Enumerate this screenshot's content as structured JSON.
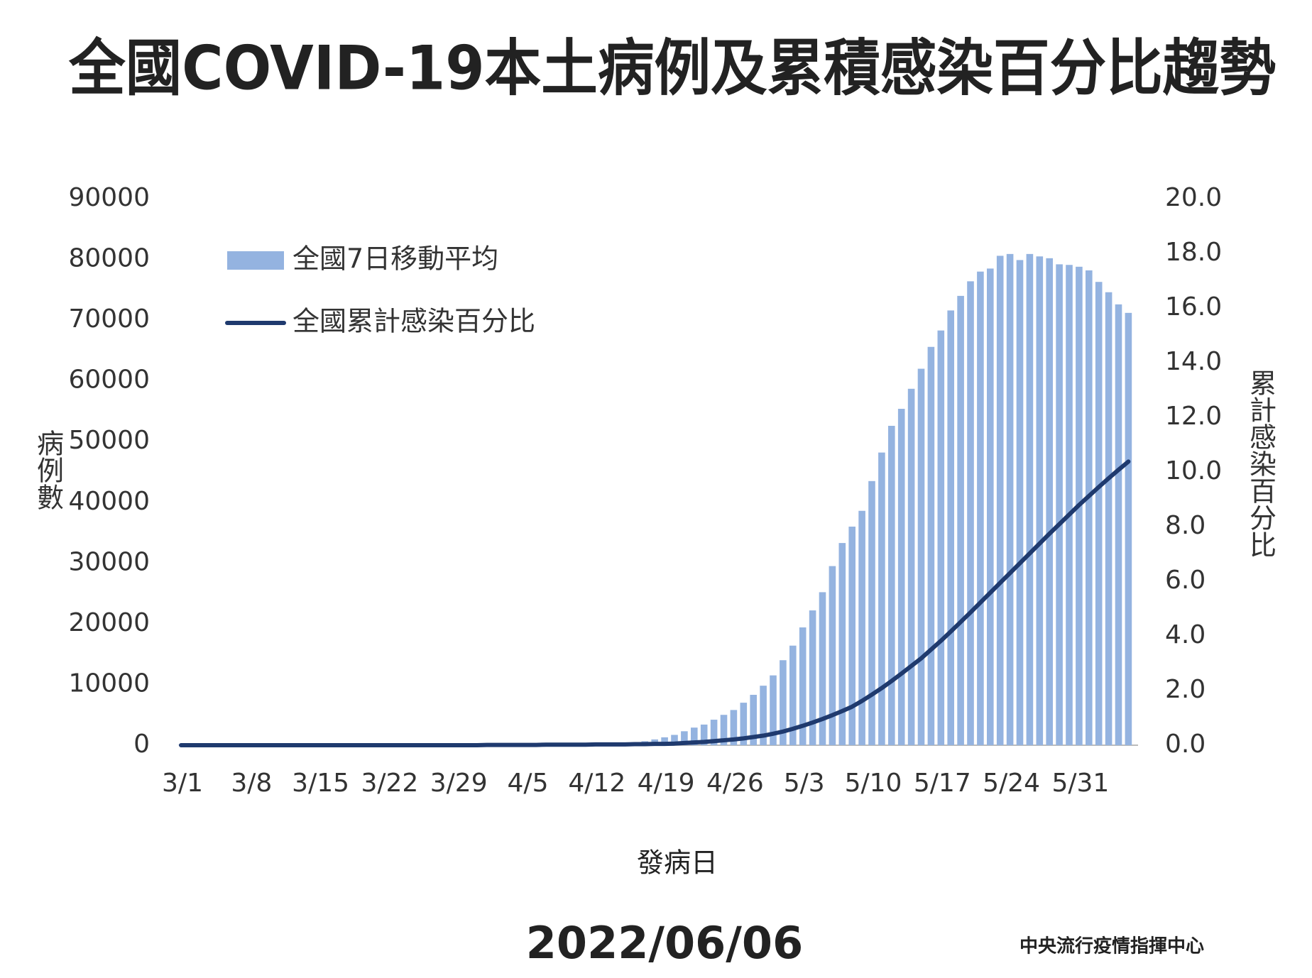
{
  "chart_data": {
    "type": "combo",
    "title": "全國COVID-19本土病例及累積感染百分比趨勢",
    "x_label": "發病日",
    "y_label": "病例數",
    "y2_label": "累計感染百分比",
    "date": "2022/06/06",
    "source": "中央流行疫情指揮中心",
    "categories": [
      "3/1",
      null,
      null,
      null,
      null,
      null,
      null,
      "3/8",
      null,
      null,
      null,
      null,
      null,
      null,
      "3/15",
      null,
      null,
      null,
      null,
      null,
      null,
      "3/22",
      null,
      null,
      null,
      null,
      null,
      null,
      "3/29",
      null,
      null,
      null,
      null,
      null,
      null,
      "4/5",
      null,
      null,
      null,
      null,
      null,
      null,
      "4/12",
      null,
      null,
      null,
      null,
      null,
      null,
      "4/19",
      null,
      null,
      null,
      null,
      null,
      null,
      "4/26",
      null,
      null,
      null,
      null,
      null,
      null,
      "5/3",
      null,
      null,
      null,
      null,
      null,
      null,
      "5/10",
      null,
      null,
      null,
      null,
      null,
      null,
      "5/17",
      null,
      null,
      null,
      null,
      null,
      null,
      "5/24",
      null,
      null,
      null,
      null,
      null,
      null,
      "5/31",
      null,
      null,
      null,
      null,
      null
    ],
    "series": [
      {
        "name": "全國7日移動平均",
        "type": "bar",
        "color": "#94b3e0",
        "values": [
          30,
          35,
          40,
          35,
          30,
          45,
          50,
          40,
          35,
          45,
          50,
          55,
          50,
          45,
          55,
          60,
          65,
          60,
          55,
          60,
          70,
          75,
          70,
          65,
          70,
          80,
          85,
          90,
          85,
          90,
          100,
          100,
          105,
          110,
          115,
          120,
          130,
          140,
          150,
          160,
          170,
          180,
          200,
          230,
          280,
          350,
          450,
          650,
          950,
          1300,
          1700,
          2300,
          2900,
          3400,
          4200,
          5000,
          5800,
          7000,
          8300,
          9800,
          11500,
          14000,
          16400,
          19400,
          22200,
          25200,
          29500,
          33300,
          36000,
          38600,
          43500,
          48200,
          52600,
          55400,
          58700,
          62000,
          65600,
          68300,
          71600,
          74000,
          76400,
          78000,
          78500,
          80600,
          80900,
          79900,
          80900,
          80500,
          80200,
          79200,
          79100,
          78800,
          78200,
          76300,
          74600,
          72600,
          71200
        ]
      },
      {
        "name": "全國累計感染百分比",
        "type": "line",
        "color": "#1f3a6e",
        "axis": "y2",
        "values": [
          0,
          0,
          0,
          0,
          0,
          0,
          0,
          0,
          0,
          0,
          0,
          0,
          0,
          0,
          0,
          0,
          0,
          0,
          0,
          0,
          0,
          0,
          0,
          0,
          0,
          0,
          0,
          0,
          0,
          0,
          0,
          0.01,
          0.01,
          0.01,
          0.01,
          0.01,
          0.01,
          0.02,
          0.02,
          0.02,
          0.02,
          0.02,
          0.03,
          0.03,
          0.03,
          0.03,
          0.04,
          0.04,
          0.05,
          0.05,
          0.06,
          0.08,
          0.1,
          0.12,
          0.15,
          0.18,
          0.21,
          0.25,
          0.3,
          0.35,
          0.42,
          0.5,
          0.6,
          0.71,
          0.83,
          0.96,
          1.1,
          1.25,
          1.41,
          1.62,
          1.85,
          2.09,
          2.35,
          2.62,
          2.9,
          3.18,
          3.5,
          3.82,
          4.16,
          4.51,
          4.86,
          5.22,
          5.58,
          5.94,
          6.3,
          6.66,
          7.02,
          7.38,
          7.74,
          8.09,
          8.44,
          8.79,
          9.12,
          9.45,
          9.77,
          10.08,
          10.38
        ]
      }
    ],
    "ylim": [
      0,
      90000
    ],
    "yticks": [
      0,
      10000,
      20000,
      30000,
      40000,
      50000,
      60000,
      70000,
      80000,
      90000
    ],
    "y2lim": [
      0,
      20
    ],
    "y2ticks": [
      {
        "value": 0,
        "label": "0.0"
      },
      {
        "value": 2,
        "label": "2.0"
      },
      {
        "value": 4,
        "label": "4.0"
      },
      {
        "value": 6,
        "label": "6.0"
      },
      {
        "value": 8,
        "label": "8.0"
      },
      {
        "value": 10,
        "label": "10.0"
      },
      {
        "value": 12,
        "label": "12.0"
      },
      {
        "value": 14,
        "label": "14.0"
      },
      {
        "value": 16,
        "label": "16.0"
      },
      {
        "value": 18,
        "label": "18.0"
      },
      {
        "value": 20,
        "label": "20.0"
      }
    ],
    "grid": false,
    "legend": "upper left"
  }
}
